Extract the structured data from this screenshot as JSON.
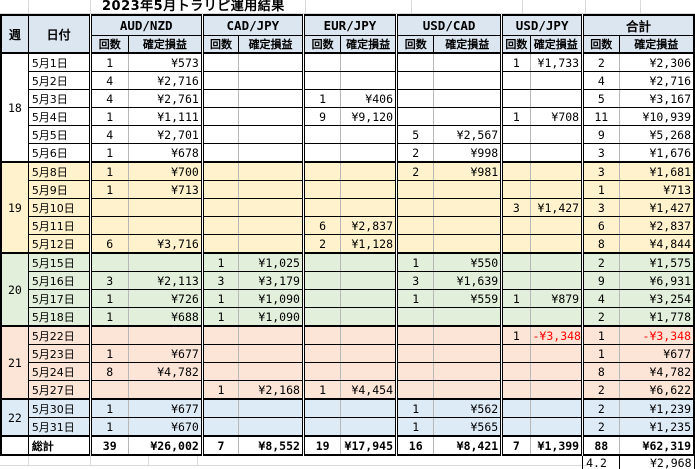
{
  "colors": {
    "header_bg": "#DCE6F1",
    "negative_text": "#FF0000",
    "week_row_colors": {
      "18": "#FFFFFF",
      "19": "#FFF2CC",
      "20": "#E2EFDA",
      "21": "#FCE4D6",
      "22": "#DDEBF7"
    }
  },
  "chart_data": {
    "type": "table",
    "title": "2023年5月トラリピ運用結果",
    "row_header_columns": [
      "週",
      "日付"
    ],
    "column_groups": [
      "AUD/NZD",
      "CAD/JPY",
      "EUR/JPY",
      "USD/CAD",
      "USD/JPY",
      "合計"
    ],
    "sub_columns": [
      "回数",
      "確定損益"
    ],
    "weeks": [
      {
        "week": "18",
        "color": "#FFFFFF",
        "rows": [
          {
            "date": "5月1日",
            "values": [
              "1",
              "¥573",
              "",
              "",
              "",
              "",
              "",
              "",
              "1",
              "¥1,733",
              "2",
              "¥2,306"
            ]
          },
          {
            "date": "5月2日",
            "values": [
              "4",
              "¥2,716",
              "",
              "",
              "",
              "",
              "",
              "",
              "",
              "",
              "4",
              "¥2,716"
            ]
          },
          {
            "date": "5月3日",
            "values": [
              "4",
              "¥2,761",
              "",
              "",
              "1",
              "¥406",
              "",
              "",
              "",
              "",
              "5",
              "¥3,167"
            ]
          },
          {
            "date": "5月4日",
            "values": [
              "1",
              "¥1,111",
              "",
              "",
              "9",
              "¥9,120",
              "",
              "",
              "1",
              "¥708",
              "11",
              "¥10,939"
            ]
          },
          {
            "date": "5月5日",
            "values": [
              "4",
              "¥2,701",
              "",
              "",
              "",
              "",
              "5",
              "¥2,567",
              "",
              "",
              "9",
              "¥5,268"
            ]
          },
          {
            "date": "5月6日",
            "values": [
              "1",
              "¥678",
              "",
              "",
              "",
              "",
              "2",
              "¥998",
              "",
              "",
              "3",
              "¥1,676"
            ]
          }
        ]
      },
      {
        "week": "19",
        "color": "#FFF2CC",
        "rows": [
          {
            "date": "5月8日",
            "values": [
              "1",
              "¥700",
              "",
              "",
              "",
              "",
              "2",
              "¥981",
              "",
              "",
              "3",
              "¥1,681"
            ]
          },
          {
            "date": "5月9日",
            "values": [
              "1",
              "¥713",
              "",
              "",
              "",
              "",
              "",
              "",
              "",
              "",
              "1",
              "¥713"
            ]
          },
          {
            "date": "5月10日",
            "values": [
              "",
              "",
              "",
              "",
              "",
              "",
              "",
              "",
              "3",
              "¥1,427",
              "3",
              "¥1,427"
            ]
          },
          {
            "date": "5月11日",
            "values": [
              "",
              "",
              "",
              "",
              "6",
              "¥2,837",
              "",
              "",
              "",
              "",
              "6",
              "¥2,837"
            ]
          },
          {
            "date": "5月12日",
            "values": [
              "6",
              "¥3,716",
              "",
              "",
              "2",
              "¥1,128",
              "",
              "",
              "",
              "",
              "8",
              "¥4,844"
            ]
          }
        ]
      },
      {
        "week": "20",
        "color": "#E2EFDA",
        "rows": [
          {
            "date": "5月15日",
            "values": [
              "",
              "",
              "1",
              "¥1,025",
              "",
              "",
              "1",
              "¥550",
              "",
              "",
              "2",
              "¥1,575"
            ]
          },
          {
            "date": "5月16日",
            "values": [
              "3",
              "¥2,113",
              "3",
              "¥3,179",
              "",
              "",
              "3",
              "¥1,639",
              "",
              "",
              "9",
              "¥6,931"
            ]
          },
          {
            "date": "5月17日",
            "values": [
              "1",
              "¥726",
              "1",
              "¥1,090",
              "",
              "",
              "1",
              "¥559",
              "1",
              "¥879",
              "4",
              "¥3,254"
            ]
          },
          {
            "date": "5月18日",
            "values": [
              "1",
              "¥688",
              "1",
              "¥1,090",
              "",
              "",
              "",
              "",
              "",
              "",
              "2",
              "¥1,778"
            ]
          }
        ]
      },
      {
        "week": "21",
        "color": "#FCE4D6",
        "rows": [
          {
            "date": "5月22日",
            "values": [
              "",
              "",
              "",
              "",
              "",
              "",
              "",
              "",
              "1",
              "-¥3,348",
              "1",
              "-¥3,348"
            ]
          },
          {
            "date": "5月23日",
            "values": [
              "1",
              "¥677",
              "",
              "",
              "",
              "",
              "",
              "",
              "",
              "",
              "1",
              "¥677"
            ]
          },
          {
            "date": "5月24日",
            "values": [
              "8",
              "¥4,782",
              "",
              "",
              "",
              "",
              "",
              "",
              "",
              "",
              "8",
              "¥4,782"
            ]
          },
          {
            "date": "5月27日",
            "values": [
              "",
              "",
              "1",
              "¥2,168",
              "1",
              "¥4,454",
              "",
              "",
              "",
              "",
              "2",
              "¥6,622"
            ]
          }
        ]
      },
      {
        "week": "22",
        "color": "#DDEBF7",
        "rows": [
          {
            "date": "5月30日",
            "values": [
              "1",
              "¥677",
              "",
              "",
              "",
              "",
              "1",
              "¥562",
              "",
              "",
              "2",
              "¥1,239"
            ]
          },
          {
            "date": "5月31日",
            "values": [
              "1",
              "¥670",
              "",
              "",
              "",
              "",
              "1",
              "¥565",
              "",
              "",
              "2",
              "¥1,235"
            ]
          }
        ]
      }
    ],
    "grand_total": {
      "label": "総計",
      "values": [
        "39",
        "¥26,002",
        "7",
        "¥8,552",
        "19",
        "¥17,945",
        "16",
        "¥8,421",
        "7",
        "¥1,399",
        "88",
        "¥62,319"
      ]
    },
    "daily_average": {
      "count": "4.2",
      "profit": "¥2,968"
    }
  }
}
